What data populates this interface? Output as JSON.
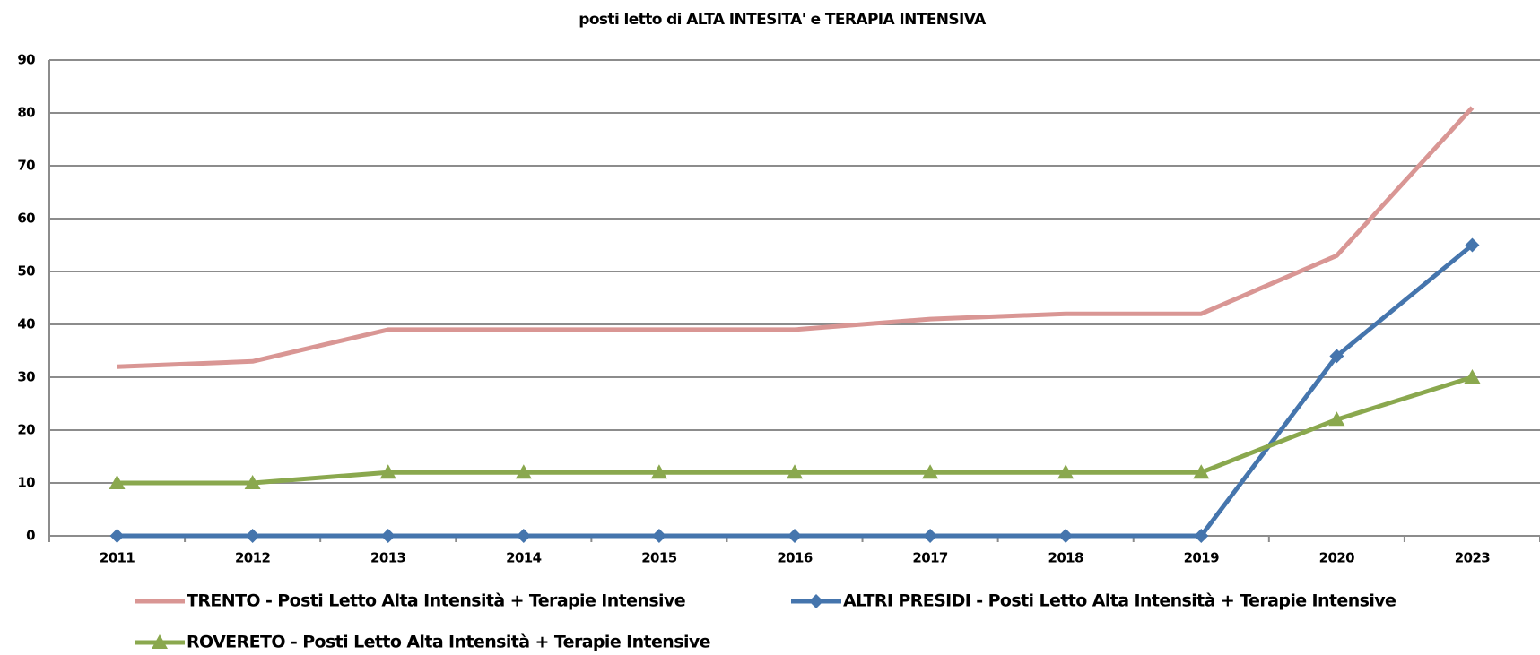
{
  "chart_data": {
    "type": "line",
    "title": "posti letto di ALTA INTESITA' e TERAPIA INTENSIVA",
    "categories": [
      "2011",
      "2012",
      "2013",
      "2014",
      "2015",
      "2016",
      "2017",
      "2018",
      "2019",
      "2020",
      "2023"
    ],
    "series": [
      {
        "name": "TRENTO - Posti Letto Alta Intensità + Terapie Intensive",
        "color": "#d99694",
        "marker": "none",
        "values": [
          32,
          33,
          39,
          39,
          39,
          39,
          41,
          42,
          42,
          53,
          81
        ]
      },
      {
        "name": "ALTRI PRESIDI - Posti Letto Alta Intensità + Terapie Intensive",
        "color": "#4575ad",
        "marker": "diamond",
        "values": [
          0,
          0,
          0,
          0,
          0,
          0,
          0,
          0,
          0,
          34,
          55
        ]
      },
      {
        "name": "ROVERETO - Posti Letto Alta Intensità + Terapie Intensive",
        "color": "#8aa84e",
        "marker": "triangle",
        "values": [
          10,
          10,
          12,
          12,
          12,
          12,
          12,
          12,
          12,
          22,
          30
        ]
      }
    ],
    "ylim": [
      0,
      90
    ],
    "yticks": [
      0,
      10,
      20,
      30,
      40,
      50,
      60,
      70,
      80,
      90
    ],
    "grid": true,
    "legend": "bottom"
  }
}
